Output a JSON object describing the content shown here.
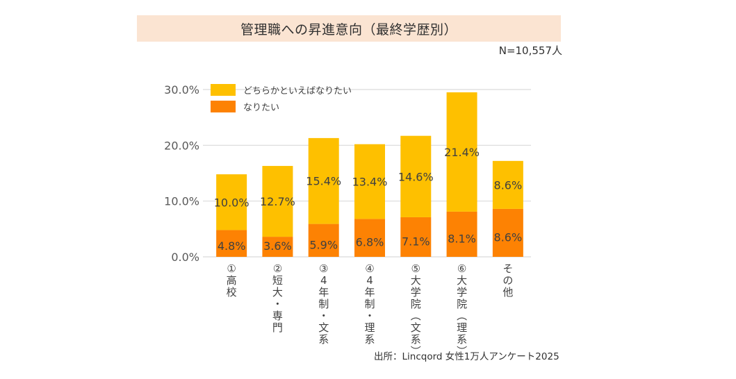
{
  "header": {
    "title": "管理職への昇進意向（最終学歴別）",
    "sample_size": "N=10,557人"
  },
  "footer": {
    "source": "出所：Lincqord 女性1万人アンケート2025"
  },
  "colors": {
    "title_band": "#fbe4d2",
    "want": "#fd8203",
    "somewhat_want": "#fec000",
    "gridline": "#d9d9d9",
    "text": "#404040"
  },
  "chart_data": {
    "type": "bar",
    "stacked": true,
    "title": "管理職への昇進意向（最終学歴別）",
    "xlabel": "",
    "ylabel": "",
    "ylim": [
      0,
      30
    ],
    "yticks": [
      0,
      10,
      20,
      30
    ],
    "ytick_labels": [
      "0.0%",
      "10.0%",
      "20.0%",
      "30.0%"
    ],
    "grid": true,
    "legend_position": "top-left",
    "categories": [
      "①高校",
      "②短大・専門",
      "③4年制・文系",
      "④4年制・理系",
      "⑤大学院(文系)",
      "⑥大学院(理系)",
      "その他"
    ],
    "series": [
      {
        "name": "なりたい",
        "color": "#fd8203",
        "values": [
          4.8,
          3.6,
          5.9,
          6.8,
          7.1,
          8.1,
          8.6
        ],
        "labels": [
          "4.8%",
          "3.6%",
          "5.9%",
          "6.8%",
          "7.1%",
          "8.1%",
          "8.6%"
        ]
      },
      {
        "name": "どちらかといえばなりたい",
        "color": "#fec000",
        "values": [
          10.0,
          12.7,
          15.4,
          13.4,
          14.6,
          21.4,
          8.6
        ],
        "labels": [
          "10.0%",
          "12.7%",
          "15.4%",
          "13.4%",
          "14.6%",
          "21.4%",
          "8.6%"
        ]
      }
    ],
    "legend": [
      "どちらかといえばなりたい",
      "なりたい"
    ]
  }
}
